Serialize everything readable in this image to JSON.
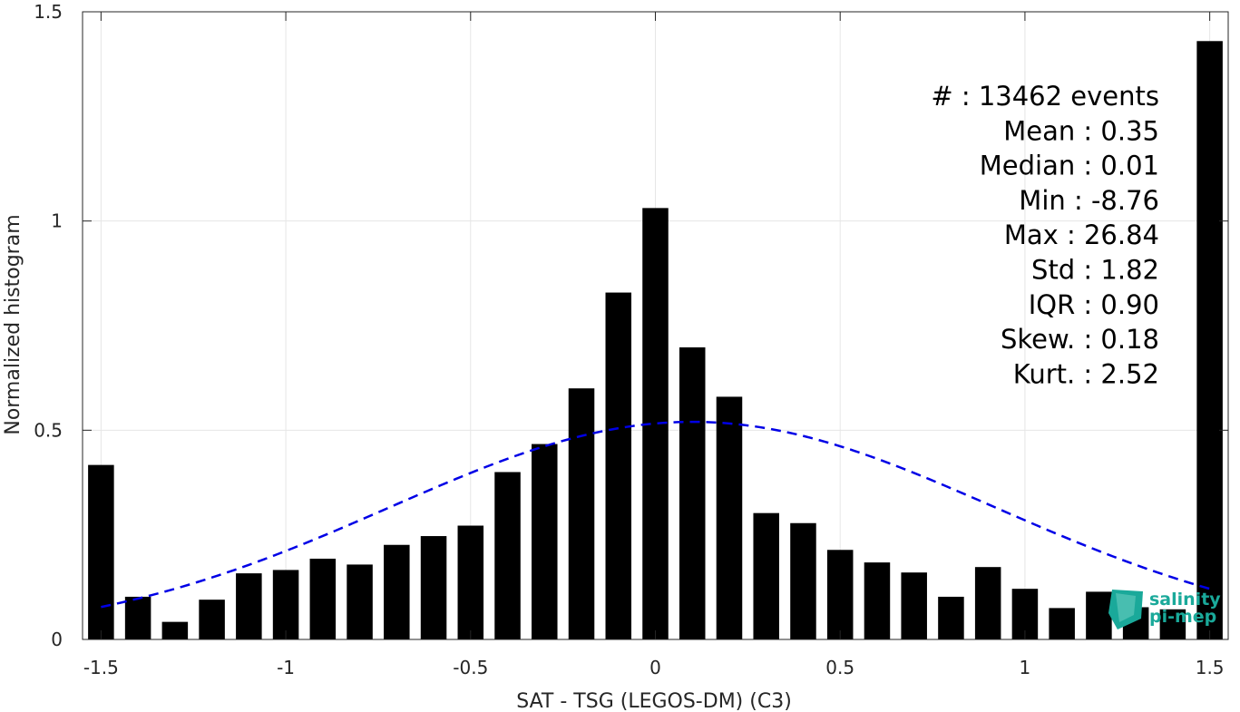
{
  "chart_data": {
    "type": "bar",
    "title": "",
    "xlabel": "SAT - TSG (LEGOS-DM) (C3)",
    "ylabel": "Normalized histogram",
    "xlim": [
      -1.55,
      1.55
    ],
    "ylim": [
      0,
      1.5
    ],
    "grid": true,
    "bar_width": 0.07,
    "x_ticks": [
      -1.5,
      -1,
      -0.5,
      0,
      0.5,
      1,
      1.5
    ],
    "x_tick_labels": [
      "-1.5",
      "-1",
      "-0.5",
      "0",
      "0.5",
      "1",
      "1.5"
    ],
    "y_ticks": [
      0,
      0.5,
      1,
      1.5
    ],
    "y_tick_labels": [
      "0",
      "0.5",
      "1",
      "1.5"
    ],
    "bar_color": "#000000",
    "x": [
      -1.5,
      -1.4,
      -1.3,
      -1.2,
      -1.1,
      -1.0,
      -0.9,
      -0.8,
      -0.7,
      -0.6,
      -0.5,
      -0.4,
      -0.3,
      -0.2,
      -0.1,
      0.0,
      0.1,
      0.2,
      0.3,
      0.4,
      0.5,
      0.6,
      0.7,
      0.8,
      0.9,
      1.0,
      1.1,
      1.2,
      1.3,
      1.4,
      1.5
    ],
    "values": [
      0.417,
      0.102,
      0.042,
      0.095,
      0.158,
      0.166,
      0.193,
      0.179,
      0.226,
      0.247,
      0.272,
      0.4,
      0.467,
      0.6,
      0.829,
      1.031,
      0.698,
      0.58,
      0.302,
      0.278,
      0.214,
      0.184,
      0.16,
      0.102,
      0.173,
      0.121,
      0.075,
      0.114,
      0.077,
      0.072,
      1.43
    ],
    "fit_curve": {
      "style": "dashed",
      "color": "#0000e6",
      "mean": 0.1,
      "peak": 0.52,
      "sigma": 0.82,
      "x_range": [
        -1.5,
        1.5
      ]
    },
    "annotations": [
      "#  : 13462 events",
      "Mean : 0.35",
      "Median : 0.01",
      "Min : -8.76",
      "Max : 26.84",
      "Std : 1.82",
      "IQR : 0.90",
      "Skew. : 0.18",
      "Kurt. : 2.52"
    ]
  },
  "logo": {
    "line1": "salinity",
    "line2": "pi-mep",
    "color": "#1aa99a"
  }
}
